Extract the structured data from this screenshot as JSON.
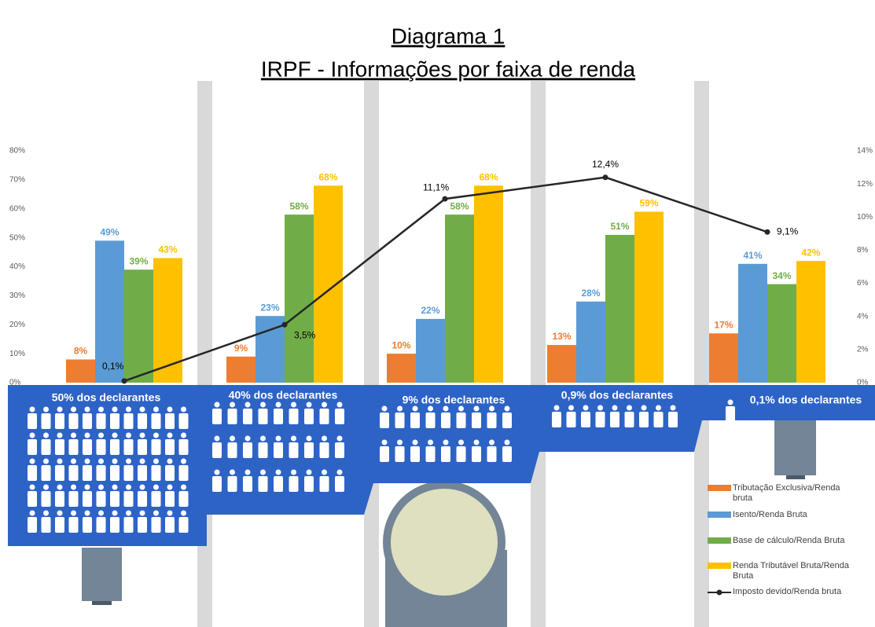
{
  "chart_data": {
    "type": "bar",
    "title": "Diagrama 1",
    "subtitle": "IRPF - Informações por faixa de renda",
    "categories": [
      "50% dos declarantes",
      "40% dos declarantes",
      "9% dos  declarantes",
      "0,9% dos declarantes",
      "0,1% dos declarantes"
    ],
    "series": [
      {
        "name": "Tributação Exclusiva/Renda bruta",
        "color": "#ed7d31",
        "values": [
          8,
          9,
          10,
          13,
          17
        ],
        "value_labels": [
          "8%",
          "9%",
          "10%",
          "13%",
          "17%"
        ]
      },
      {
        "name": "Isento/Renda Bruta",
        "color": "#5b9bd5",
        "values": [
          49,
          23,
          22,
          28,
          41
        ],
        "value_labels": [
          "49%",
          "23%",
          "22%",
          "28%",
          "41%"
        ]
      },
      {
        "name": "Base de cálculo/Renda Bruta",
        "color": "#70ad47",
        "values": [
          39,
          58,
          58,
          51,
          34
        ],
        "value_labels": [
          "39%",
          "58%",
          "58%",
          "51%",
          "34%"
        ]
      },
      {
        "name": "Renda Tributável Bruta/Renda Bruta",
        "color": "#ffc000",
        "values": [
          43,
          68,
          68,
          59,
          42
        ],
        "value_labels": [
          "43%",
          "68%",
          "68%",
          "59%",
          "42%"
        ]
      },
      {
        "name": "Imposto devido/Renda bruta",
        "color": "#262626",
        "type": "line",
        "axis": "y2",
        "values": [
          0.1,
          3.5,
          11.1,
          12.4,
          9.1
        ],
        "value_labels": [
          "0,1%",
          "3,5%",
          "11,1%",
          "12,4%",
          "9,1%"
        ]
      }
    ],
    "ylim": [
      0,
      80
    ],
    "yticks": [
      {
        "value": 0,
        "label": "0%"
      },
      {
        "value": 10,
        "label": "10%"
      },
      {
        "value": 20,
        "label": "20%"
      },
      {
        "value": 30,
        "label": "30%"
      },
      {
        "value": 40,
        "label": "40%"
      },
      {
        "value": 50,
        "label": "50%"
      },
      {
        "value": 60,
        "label": "60%"
      },
      {
        "value": 70,
        "label": "70%"
      },
      {
        "value": 80,
        "label": "80%"
      }
    ],
    "y2lim": [
      0,
      14
    ],
    "y2ticks": [
      {
        "value": 0,
        "label": "0%"
      },
      {
        "value": 2,
        "label": "2%"
      },
      {
        "value": 4,
        "label": "4%"
      },
      {
        "value": 6,
        "label": "6%"
      },
      {
        "value": 8,
        "label": "8%"
      },
      {
        "value": 10,
        "label": "10%"
      },
      {
        "value": 12,
        "label": "12%"
      },
      {
        "value": 14,
        "label": "14%"
      }
    ],
    "grid": false,
    "legend": "bottom-right"
  }
}
